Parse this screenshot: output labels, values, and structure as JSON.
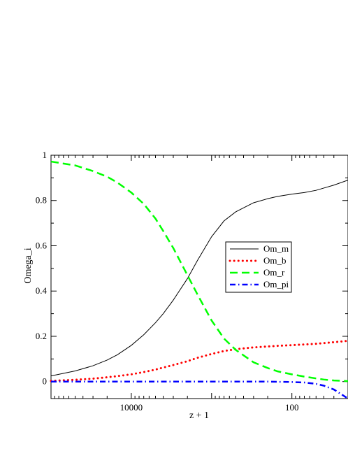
{
  "chart_data": {
    "type": "line",
    "title": "",
    "xlabel": "z + 1",
    "ylabel": "Omega_i",
    "x_scale": "log",
    "x_reversed": true,
    "xlim": [
      100000,
      20
    ],
    "ylim": [
      -0.075,
      1.0
    ],
    "x_tick_labels": [
      "10000",
      "100"
    ],
    "x_ticks": [
      10000,
      100
    ],
    "y_ticks": [
      0,
      0.2,
      0.4,
      0.6,
      0.8,
      1
    ],
    "y_tick_labels": [
      "0",
      "0.2",
      "0.4",
      "0.6",
      "0.8",
      "1"
    ],
    "grid": false,
    "legend_position": "center-right",
    "x": [
      100000,
      50000,
      30000,
      20000,
      15000,
      10000,
      7000,
      5000,
      4000,
      3000,
      2000,
      1500,
      1000,
      700,
      500,
      300,
      200,
      150,
      100,
      70,
      50,
      40,
      30,
      20
    ],
    "series": [
      {
        "name": "Om_m",
        "color": "#000000",
        "dash": "solid",
        "values": [
          0.025,
          0.047,
          0.07,
          0.095,
          0.118,
          0.16,
          0.207,
          0.26,
          0.3,
          0.36,
          0.455,
          0.535,
          0.64,
          0.71,
          0.75,
          0.79,
          0.808,
          0.818,
          0.828,
          0.835,
          0.845,
          0.855,
          0.868,
          0.89
        ]
      },
      {
        "name": "Om_b",
        "color": "#ff0000",
        "dash": "dotted",
        "values": [
          0.003,
          0.008,
          0.013,
          0.019,
          0.024,
          0.032,
          0.042,
          0.053,
          0.062,
          0.073,
          0.09,
          0.105,
          0.122,
          0.135,
          0.143,
          0.151,
          0.155,
          0.158,
          0.161,
          0.164,
          0.167,
          0.17,
          0.174,
          0.18
        ]
      },
      {
        "name": "Om_r",
        "color": "#00ff00",
        "dash": "dashed",
        "values": [
          0.972,
          0.955,
          0.93,
          0.905,
          0.88,
          0.835,
          0.785,
          0.72,
          0.665,
          0.59,
          0.47,
          0.385,
          0.27,
          0.19,
          0.14,
          0.085,
          0.06,
          0.045,
          0.032,
          0.022,
          0.014,
          0.009,
          0.005,
          0.002
        ]
      },
      {
        "name": "Om_pi",
        "color": "#0000ff",
        "dash": "dashdot",
        "values": [
          0.0,
          0.0,
          0.0,
          0.0,
          0.0,
          0.0,
          0.0,
          0.0,
          0.0,
          0.0,
          0.0,
          0.0,
          0.0,
          0.0,
          0.0,
          0.0,
          0.0,
          -0.001,
          -0.002,
          -0.004,
          -0.01,
          -0.018,
          -0.035,
          -0.075
        ]
      }
    ]
  }
}
